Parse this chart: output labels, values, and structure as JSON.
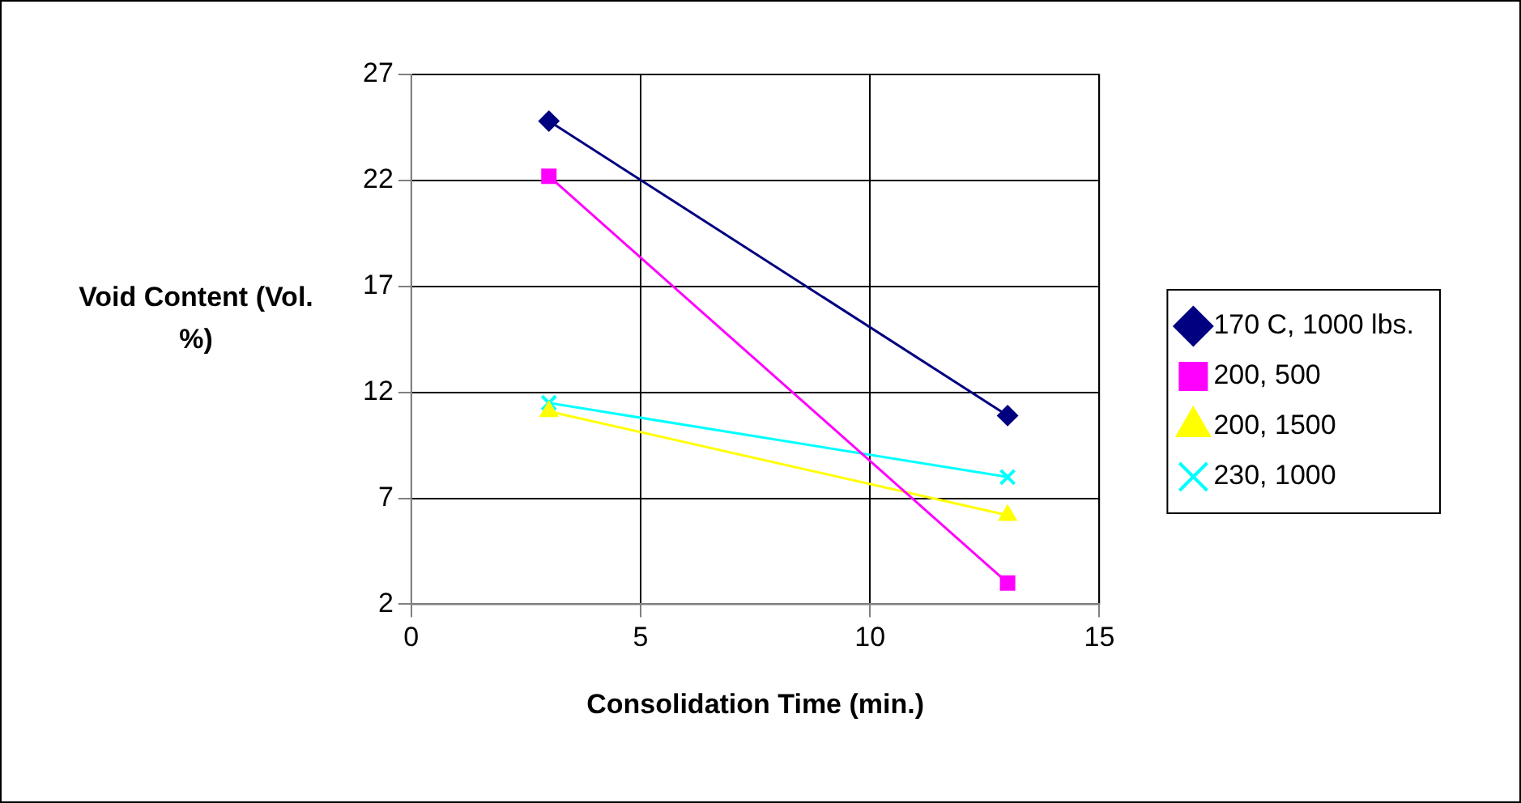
{
  "chart_data": {
    "type": "line",
    "xlabel": "Consolidation Time (min.)",
    "ylabel": "Void Content (Vol. %)",
    "x": [
      3,
      13
    ],
    "xlim": [
      0,
      15
    ],
    "xticks": [
      0,
      5,
      10,
      15
    ],
    "ylim": [
      2,
      27
    ],
    "yticks": [
      2,
      7,
      12,
      17,
      22,
      27
    ],
    "grid": true,
    "legend": "right",
    "series": [
      {
        "name": "170 C, 1000 lbs.",
        "color": "#000080",
        "marker": "diamond",
        "values": [
          24.8,
          10.9
        ]
      },
      {
        "name": "200, 500",
        "color": "#ff00ff",
        "marker": "square",
        "values": [
          22.2,
          3.0
        ]
      },
      {
        "name": "200, 1500",
        "color": "#ffff00",
        "marker": "triangle",
        "values": [
          11.1,
          6.2
        ]
      },
      {
        "name": "230, 1000",
        "color": "#00ffff",
        "marker": "cross",
        "values": [
          11.5,
          8.0
        ]
      }
    ]
  }
}
